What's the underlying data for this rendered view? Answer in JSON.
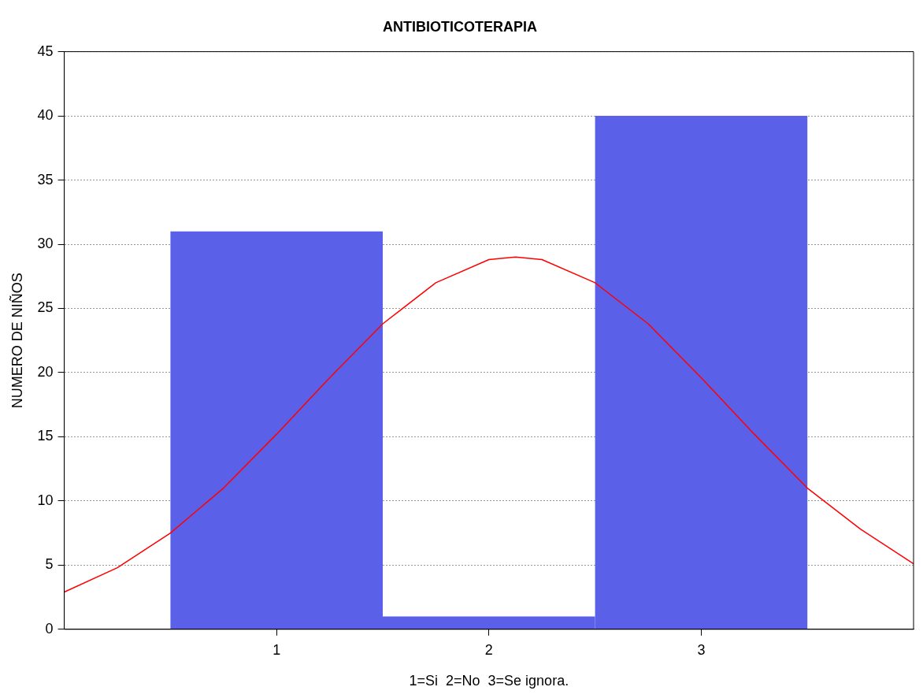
{
  "chart_data": {
    "type": "histogram",
    "title": "ANTIBIOTICOTERAPIA",
    "xlabel": "1=Si  2=No  3=Se ignora.",
    "ylabel": "NUMERO DE NIÑOS",
    "bins": [
      0.5,
      1.5,
      2.5,
      3.5
    ],
    "values": [
      31,
      1,
      40
    ],
    "color": "#5a60e8",
    "series": [
      {
        "type": "line",
        "color": "#ff0000",
        "x": [
          0,
          0.25,
          0.5,
          0.75,
          1,
          1.25,
          1.5,
          1.75,
          2,
          2.125,
          2.25,
          2.5,
          2.75,
          3,
          3.25,
          3.5,
          3.75,
          4
        ],
        "values": [
          2.9,
          4.8,
          7.5,
          11,
          15.2,
          19.6,
          23.8,
          27,
          28.8,
          29,
          28.8,
          27,
          23.8,
          19.6,
          15.2,
          11,
          7.8,
          5.1
        ]
      }
    ],
    "xlim": [
      0,
      4
    ],
    "xticks": [
      1,
      2,
      3
    ],
    "ylim": [
      0,
      45
    ],
    "yticks": [
      0,
      5,
      10,
      15,
      20,
      25,
      30,
      35,
      40,
      45
    ],
    "grid": "y"
  }
}
